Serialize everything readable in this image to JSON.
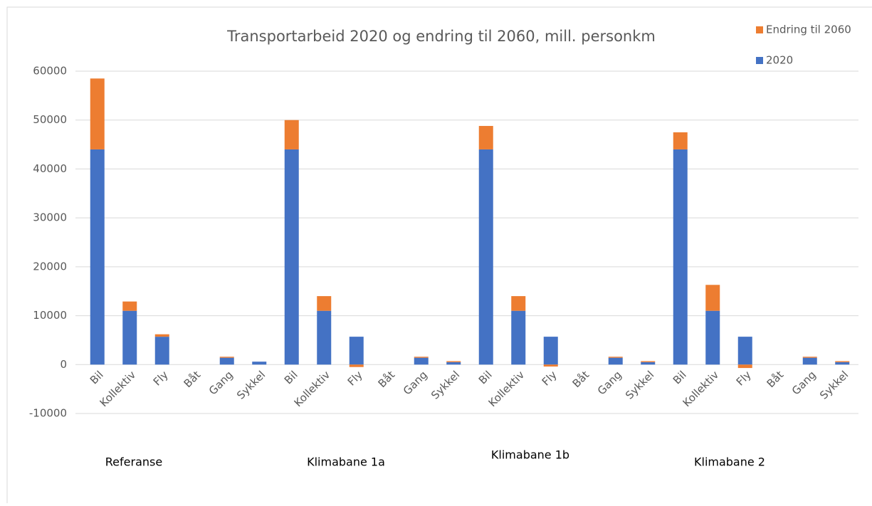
{
  "chart_data": {
    "type": "stacked_bar",
    "title": "Transportarbeid 2020 og endring til 2060, mill. personkm",
    "categories": [
      "Bil",
      "Kollektiv",
      "Fly",
      "Båt",
      "Gang",
      "Sykkel",
      "Bil",
      "Kollektiv",
      "Fly",
      "Båt",
      "Gang",
      "Sykkel",
      "Bil",
      "Kollektiv",
      "Fly",
      "Båt",
      "Gang",
      "Sykkel",
      "Bil",
      "Kollektiv",
      "Fly",
      "Båt",
      "Gang",
      "Sykkel"
    ],
    "groups": [
      "Referanse",
      "Klimabane 1a",
      "Klimabane 1b",
      "Klimabane 2"
    ],
    "series": [
      {
        "name": "2020",
        "color": "#4472c4",
        "values": [
          44000,
          11000,
          5700,
          0,
          1400,
          600,
          44000,
          11000,
          5700,
          0,
          1400,
          500,
          44000,
          11000,
          5700,
          0,
          1400,
          500,
          44000,
          11000,
          5700,
          0,
          1400,
          500
        ]
      },
      {
        "name": "Endring til 2060",
        "color": "#ed7d31",
        "values": [
          14500,
          1900,
          500,
          0,
          200,
          0,
          6000,
          3000,
          -500,
          0,
          200,
          200,
          4800,
          3000,
          -400,
          0,
          200,
          200,
          3500,
          5300,
          -700,
          0,
          200,
          200
        ]
      }
    ],
    "ylim": [
      -10000,
      60000
    ],
    "yticks": [
      -10000,
      0,
      10000,
      20000,
      30000,
      40000,
      50000,
      60000
    ],
    "grid": true
  }
}
